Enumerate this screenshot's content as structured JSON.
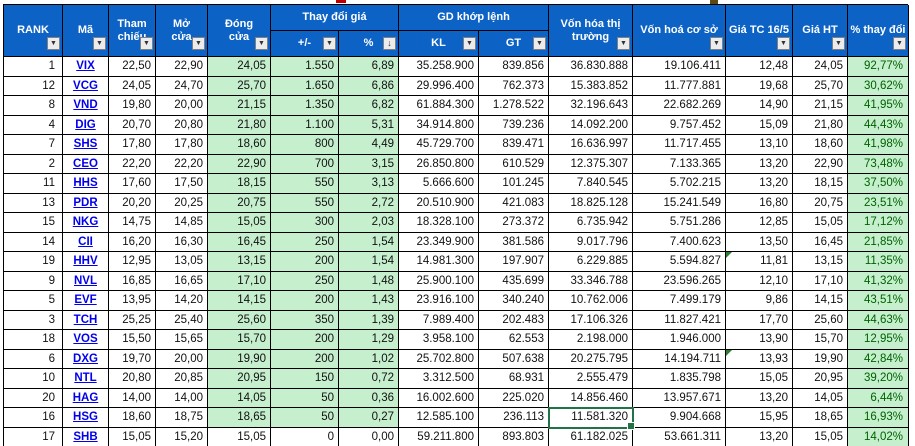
{
  "header": {
    "rank": "RANK",
    "ma": "Mã",
    "tham_chieu": "Tham chiếu",
    "mo_cua": "Mở cửa",
    "dong_cua": "Đóng cửa",
    "thay_doi_gia": "Thay đổi giá",
    "plus_minus": "+/-",
    "pct": "%",
    "gd_khop_lenh": "GD khớp lệnh",
    "kl": "KL",
    "gt": "GT",
    "von_hoa_thi_truong": "Vốn hóa thị trường",
    "von_hoa_co_so": "Vốn hoá cơ sở",
    "gia_tc": "Giá TC 16/5",
    "gia_ht": "Giá HT",
    "pct_thay_doi": "% thay đổi"
  },
  "icons": {
    "filter_dropdown": "▼",
    "sorted_descending": "↓"
  },
  "colors": {
    "header_bg": "#0d63c5",
    "header_text": "#ffffff",
    "positive_fill": "#c6efce",
    "positive_text": "#006100",
    "link_blue": "#0000ee",
    "selection_green": "#217346",
    "grid_border": "#000000"
  },
  "table": {
    "rows": [
      {
        "rank": "1",
        "code": "VIX",
        "ref": "22,50",
        "open": "22,90",
        "close": "24,05",
        "chg": "1.550",
        "chg_pct": "6,89",
        "kl": "35.258.900",
        "gt": "839.856",
        "mcap": "36.830.888",
        "bcap": "19.106.411",
        "tc": "12,48",
        "ht": "24,05",
        "pct": "92,77%",
        "up": true
      },
      {
        "rank": "12",
        "code": "VCG",
        "ref": "24,05",
        "open": "24,70",
        "close": "25,70",
        "chg": "1.650",
        "chg_pct": "6,86",
        "kl": "29.996.400",
        "gt": "762.373",
        "mcap": "15.383.852",
        "bcap": "11.777.881",
        "tc": "19,68",
        "ht": "25,70",
        "pct": "30,62%",
        "up": true
      },
      {
        "rank": "8",
        "code": "VND",
        "ref": "19,80",
        "open": "20,00",
        "close": "21,15",
        "chg": "1.350",
        "chg_pct": "6,82",
        "kl": "61.884.300",
        "gt": "1.278.522",
        "mcap": "32.196.643",
        "bcap": "22.682.269",
        "tc": "14,90",
        "ht": "21,15",
        "pct": "41,95%",
        "up": true
      },
      {
        "rank": "4",
        "code": "DIG",
        "ref": "20,70",
        "open": "20,80",
        "close": "21,80",
        "chg": "1.100",
        "chg_pct": "5,31",
        "kl": "34.914.800",
        "gt": "739.236",
        "mcap": "14.092.200",
        "bcap": "9.757.452",
        "tc": "15,09",
        "ht": "21,80",
        "pct": "44,43%",
        "up": true
      },
      {
        "rank": "7",
        "code": "SHS",
        "ref": "17,80",
        "open": "17,80",
        "close": "18,60",
        "chg": "800",
        "chg_pct": "4,49",
        "kl": "45.729.700",
        "gt": "839.471",
        "mcap": "16.636.997",
        "bcap": "11.717.455",
        "tc": "13,10",
        "ht": "18,60",
        "pct": "41,98%",
        "up": true
      },
      {
        "rank": "2",
        "code": "CEO",
        "ref": "22,20",
        "open": "22,20",
        "close": "22,90",
        "chg": "700",
        "chg_pct": "3,15",
        "kl": "26.850.800",
        "gt": "610.529",
        "mcap": "12.375.307",
        "bcap": "7.133.365",
        "tc": "13,20",
        "ht": "22,90",
        "pct": "73,48%",
        "up": true
      },
      {
        "rank": "11",
        "code": "HHS",
        "ref": "17,60",
        "open": "17,50",
        "close": "18,15",
        "chg": "550",
        "chg_pct": "3,13",
        "kl": "5.666.600",
        "gt": "101.245",
        "mcap": "7.840.545",
        "bcap": "5.702.215",
        "tc": "13,20",
        "ht": "18,15",
        "pct": "37,50%",
        "up": true
      },
      {
        "rank": "13",
        "code": "PDR",
        "ref": "20,20",
        "open": "20,25",
        "close": "20,75",
        "chg": "550",
        "chg_pct": "2,72",
        "kl": "20.510.900",
        "gt": "421.083",
        "mcap": "18.825.128",
        "bcap": "15.241.549",
        "tc": "16,80",
        "ht": "20,75",
        "pct": "23,51%",
        "up": true
      },
      {
        "rank": "15",
        "code": "NKG",
        "ref": "14,75",
        "open": "14,85",
        "close": "15,05",
        "chg": "300",
        "chg_pct": "2,03",
        "kl": "18.328.100",
        "gt": "273.372",
        "mcap": "6.735.942",
        "bcap": "5.751.286",
        "tc": "12,85",
        "ht": "15,05",
        "pct": "17,12%",
        "up": true
      },
      {
        "rank": "14",
        "code": "CII",
        "ref": "16,20",
        "open": "16,30",
        "close": "16,45",
        "chg": "250",
        "chg_pct": "1,54",
        "kl": "23.349.900",
        "gt": "381.586",
        "mcap": "9.017.796",
        "bcap": "7.400.623",
        "tc": "13,50",
        "ht": "16,45",
        "pct": "21,85%",
        "up": true
      },
      {
        "rank": "19",
        "code": "HHV",
        "ref": "12,95",
        "open": "13,05",
        "close": "13,15",
        "chg": "200",
        "chg_pct": "1,54",
        "kl": "14.981.300",
        "gt": "197.907",
        "mcap": "6.229.885",
        "bcap": "5.594.827",
        "tc": "11,81",
        "ht": "13,15",
        "pct": "11,35%",
        "up": true,
        "err_tc": true
      },
      {
        "rank": "9",
        "code": "NVL",
        "ref": "16,85",
        "open": "16,65",
        "close": "17,10",
        "chg": "250",
        "chg_pct": "1,48",
        "kl": "25.900.100",
        "gt": "435.699",
        "mcap": "33.346.788",
        "bcap": "23.596.265",
        "tc": "12,10",
        "ht": "17,10",
        "pct": "41,32%",
        "up": true
      },
      {
        "rank": "5",
        "code": "EVF",
        "ref": "13,95",
        "open": "14,20",
        "close": "14,15",
        "chg": "200",
        "chg_pct": "1,43",
        "kl": "23.916.100",
        "gt": "340.240",
        "mcap": "10.762.006",
        "bcap": "7.499.179",
        "tc": "9,86",
        "ht": "14,15",
        "pct": "43,51%",
        "up": true
      },
      {
        "rank": "3",
        "code": "TCH",
        "ref": "25,25",
        "open": "25,40",
        "close": "25,60",
        "chg": "350",
        "chg_pct": "1,39",
        "kl": "7.989.400",
        "gt": "202.483",
        "mcap": "17.106.326",
        "bcap": "11.827.421",
        "tc": "17,70",
        "ht": "25,60",
        "pct": "44,63%",
        "up": true
      },
      {
        "rank": "18",
        "code": "VOS",
        "ref": "15,50",
        "open": "15,65",
        "close": "15,70",
        "chg": "200",
        "chg_pct": "1,29",
        "kl": "3.958.100",
        "gt": "62.553",
        "mcap": "2.198.000",
        "bcap": "1.946.000",
        "tc": "13,90",
        "ht": "15,70",
        "pct": "12,95%",
        "up": true
      },
      {
        "rank": "6",
        "code": "DXG",
        "ref": "19,70",
        "open": "20,00",
        "close": "19,90",
        "chg": "200",
        "chg_pct": "1,02",
        "kl": "25.702.800",
        "gt": "507.638",
        "mcap": "20.275.795",
        "bcap": "14.194.711",
        "tc": "13,93",
        "ht": "19,90",
        "pct": "42,84%",
        "up": true,
        "err_tc": true
      },
      {
        "rank": "10",
        "code": "NTL",
        "ref": "20,80",
        "open": "20,85",
        "close": "20,95",
        "chg": "150",
        "chg_pct": "0,72",
        "kl": "3.312.500",
        "gt": "68.931",
        "mcap": "2.555.479",
        "bcap": "1.835.798",
        "tc": "15,05",
        "ht": "20,95",
        "pct": "39,20%",
        "up": true
      },
      {
        "rank": "20",
        "code": "HAG",
        "ref": "14,00",
        "open": "14,00",
        "close": "14,05",
        "chg": "50",
        "chg_pct": "0,36",
        "kl": "16.002.600",
        "gt": "225.020",
        "mcap": "14.856.460",
        "bcap": "13.957.671",
        "tc": "13,20",
        "ht": "14,05",
        "pct": "6,44%",
        "up": true
      },
      {
        "rank": "16",
        "code": "HSG",
        "ref": "18,60",
        "open": "18,75",
        "close": "18,65",
        "chg": "50",
        "chg_pct": "0,27",
        "kl": "12.585.100",
        "gt": "236.113",
        "mcap": "11.581.320",
        "bcap": "9.904.668",
        "tc": "15,95",
        "ht": "18,65",
        "pct": "16,93%",
        "up": true,
        "selected": "mcap"
      },
      {
        "rank": "17",
        "code": "SHB",
        "ref": "15,05",
        "open": "15,20",
        "close": "15,05",
        "chg": "0",
        "chg_pct": "0,00",
        "kl": "59.211.800",
        "gt": "893.803",
        "mcap": "61.182.025",
        "bcap": "53.661.311",
        "tc": "13,20",
        "ht": "15,05",
        "pct": "14,02%",
        "up": false
      }
    ]
  }
}
